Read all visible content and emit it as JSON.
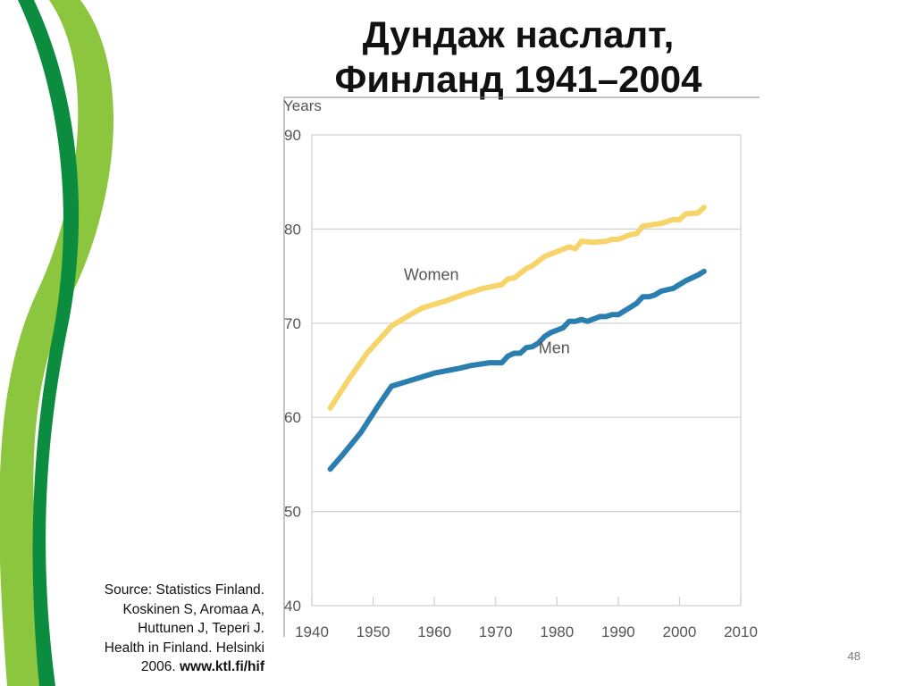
{
  "slide": {
    "title_line1": "Дундаж наслалт,",
    "title_line2": "Финланд 1941–2004",
    "source_lines": [
      "Source: Statistics Finland.",
      "Koskinen S, Aromaa A,",
      "Huttunen J, Teperi J.",
      "Health in Finland. Helsinki"
    ],
    "source_year": "2006.",
    "source_url": "www.ktl.fi/hif",
    "page_number": "48"
  },
  "colors": {
    "women": "#f7d46a",
    "men": "#2a7fb0",
    "grid": "#cfcfcf",
    "axis_text": "#555555",
    "deco_dark_green": "#0b8c3f",
    "deco_light_green": "#8cc63f"
  },
  "chart_data": {
    "type": "line",
    "ylabel": "Years",
    "xlim": [
      1940,
      2010
    ],
    "ylim": [
      40,
      90
    ],
    "x_ticks": [
      "1940",
      "1950",
      "1960",
      "1970",
      "1980",
      "1990",
      "2000",
      "2010"
    ],
    "y_ticks": [
      "40",
      "50",
      "60",
      "70",
      "80",
      "90"
    ],
    "grid": "horizontal",
    "series": [
      {
        "name": "Women",
        "x": [
          1943,
          1946,
          1949,
          1953,
          1955,
          1958,
          1962,
          1965,
          1968,
          1971,
          1972,
          1973,
          1975,
          1976,
          1978,
          1980,
          1982,
          1983,
          1984,
          1986,
          1988,
          1989,
          1990,
          1992,
          1993,
          1994,
          1996,
          1997,
          1999,
          2000,
          2001,
          2003,
          2004
        ],
        "y": [
          61.0,
          64.0,
          66.8,
          69.7,
          70.5,
          71.6,
          72.4,
          73.1,
          73.7,
          74.1,
          74.7,
          74.8,
          75.8,
          76.1,
          77.1,
          77.6,
          78.1,
          77.9,
          78.7,
          78.6,
          78.7,
          78.9,
          78.9,
          79.4,
          79.5,
          80.3,
          80.5,
          80.6,
          81.0,
          81.0,
          81.6,
          81.7,
          82.3
        ]
      },
      {
        "name": "Men",
        "x": [
          1943,
          1945,
          1948,
          1951,
          1953,
          1956,
          1960,
          1964,
          1966,
          1969,
          1971,
          1972,
          1973,
          1974,
          1975,
          1976,
          1977,
          1978,
          1979,
          1981,
          1982,
          1983,
          1984,
          1985,
          1987,
          1988,
          1989,
          1990,
          1992,
          1993,
          1994,
          1995,
          1996,
          1997,
          1999,
          2000,
          2001,
          2003,
          2004
        ],
        "y": [
          54.5,
          56.0,
          58.4,
          61.4,
          63.3,
          63.9,
          64.7,
          65.2,
          65.5,
          65.8,
          65.8,
          66.5,
          66.8,
          66.8,
          67.4,
          67.5,
          67.9,
          68.6,
          69.0,
          69.5,
          70.2,
          70.2,
          70.4,
          70.2,
          70.7,
          70.7,
          70.9,
          70.9,
          71.7,
          72.1,
          72.8,
          72.8,
          73.0,
          73.4,
          73.7,
          74.1,
          74.5,
          75.1,
          75.5
        ]
      }
    ]
  }
}
